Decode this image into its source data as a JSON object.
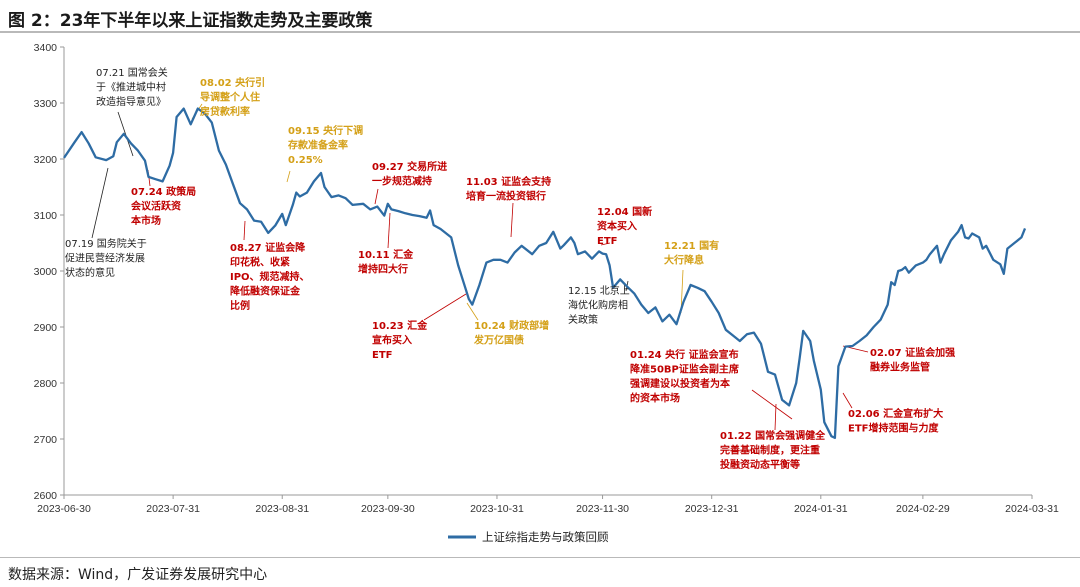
{
  "title": "图 2：23年下半年以来上证指数走势及主要政策",
  "source": "数据来源：Wind，广发证券发展研究中心",
  "colors": {
    "line": "#2e6ca4",
    "red": "#c00000",
    "gold": "#d4a017",
    "black": "#222222",
    "axis": "#999999"
  },
  "chart_data": {
    "type": "line",
    "title": "23年下半年以来上证指数走势及主要政策",
    "xlabel": "",
    "ylabel": "",
    "ylim": [
      2600,
      3400
    ],
    "yticks": [
      2600,
      2700,
      2800,
      2900,
      3000,
      3100,
      3200,
      3300,
      3400
    ],
    "xlim": [
      0,
      275
    ],
    "xticks": [
      {
        "label": "2023-06-30",
        "x": 0
      },
      {
        "label": "2023-07-31",
        "x": 31
      },
      {
        "label": "2023-08-31",
        "x": 62
      },
      {
        "label": "2023-09-30",
        "x": 92
      },
      {
        "label": "2023-10-31",
        "x": 123
      },
      {
        "label": "2023-11-30",
        "x": 153
      },
      {
        "label": "2023-12-31",
        "x": 184
      },
      {
        "label": "2024-01-31",
        "x": 215
      },
      {
        "label": "2024-02-29",
        "x": 244
      },
      {
        "label": "2024-03-31",
        "x": 275
      }
    ],
    "grid": false,
    "legend_position": "bottom",
    "series": [
      {
        "name": "上证综指走势与政策回顾",
        "points": [
          [
            0,
            3202
          ],
          [
            3,
            3230
          ],
          [
            5,
            3248
          ],
          [
            7,
            3228
          ],
          [
            9,
            3203
          ],
          [
            12,
            3198
          ],
          [
            14,
            3205
          ],
          [
            15,
            3230
          ],
          [
            17,
            3245
          ],
          [
            19,
            3228
          ],
          [
            21,
            3215
          ],
          [
            23,
            3197
          ],
          [
            24,
            3168
          ],
          [
            26,
            3164
          ],
          [
            28,
            3160
          ],
          [
            30,
            3188
          ],
          [
            31,
            3211
          ],
          [
            32,
            3275
          ],
          [
            34,
            3290
          ],
          [
            36,
            3262
          ],
          [
            38,
            3290
          ],
          [
            40,
            3281
          ],
          [
            42,
            3265
          ],
          [
            44,
            3215
          ],
          [
            46,
            3190
          ],
          [
            48,
            3155
          ],
          [
            50,
            3121
          ],
          [
            52,
            3110
          ],
          [
            54,
            3090
          ],
          [
            56,
            3088
          ],
          [
            58,
            3068
          ],
          [
            60,
            3081
          ],
          [
            62,
            3102
          ],
          [
            63,
            3082
          ],
          [
            64,
            3100
          ],
          [
            65,
            3118
          ],
          [
            66,
            3140
          ],
          [
            67,
            3133
          ],
          [
            69,
            3140
          ],
          [
            71,
            3160
          ],
          [
            73,
            3175
          ],
          [
            74,
            3150
          ],
          [
            76,
            3132
          ],
          [
            78,
            3135
          ],
          [
            80,
            3130
          ],
          [
            82,
            3118
          ],
          [
            85,
            3120
          ],
          [
            87,
            3110
          ],
          [
            89,
            3115
          ],
          [
            91,
            3099
          ],
          [
            92,
            3120
          ],
          [
            93,
            3110
          ],
          [
            95,
            3107
          ],
          [
            97,
            3103
          ],
          [
            99,
            3100
          ],
          [
            101,
            3098
          ],
          [
            103,
            3095
          ],
          [
            104,
            3108
          ],
          [
            105,
            3082
          ],
          [
            107,
            3075
          ],
          [
            110,
            3060
          ],
          [
            112,
            3010
          ],
          [
            114,
            2970
          ],
          [
            115,
            2950
          ],
          [
            116,
            2940
          ],
          [
            118,
            2975
          ],
          [
            120,
            3015
          ],
          [
            122,
            3020
          ],
          [
            124,
            3020
          ],
          [
            126,
            3015
          ],
          [
            128,
            3033
          ],
          [
            130,
            3045
          ],
          [
            133,
            3030
          ],
          [
            135,
            3045
          ],
          [
            137,
            3050
          ],
          [
            139,
            3070
          ],
          [
            141,
            3040
          ],
          [
            142,
            3046
          ],
          [
            144,
            3060
          ],
          [
            145,
            3050
          ],
          [
            146,
            3030
          ],
          [
            148,
            3035
          ],
          [
            150,
            3022
          ],
          [
            152,
            3035
          ],
          [
            153,
            3031
          ],
          [
            154,
            3030
          ],
          [
            155,
            3010
          ],
          [
            156,
            2970
          ],
          [
            158,
            2985
          ],
          [
            160,
            2972
          ],
          [
            162,
            2960
          ],
          [
            164,
            2940
          ],
          [
            166,
            2925
          ],
          [
            168,
            2935
          ],
          [
            170,
            2910
          ],
          [
            172,
            2922
          ],
          [
            174,
            2905
          ],
          [
            176,
            2945
          ],
          [
            178,
            2975
          ],
          [
            180,
            2970
          ],
          [
            182,
            2964
          ],
          [
            184,
            2945
          ],
          [
            186,
            2925
          ],
          [
            188,
            2895
          ],
          [
            190,
            2885
          ],
          [
            192,
            2875
          ],
          [
            194,
            2887
          ],
          [
            196,
            2890
          ],
          [
            198,
            2870
          ],
          [
            200,
            2820
          ],
          [
            202,
            2815
          ],
          [
            204,
            2770
          ],
          [
            206,
            2760
          ],
          [
            208,
            2800
          ],
          [
            209,
            2845
          ],
          [
            210,
            2893
          ],
          [
            212,
            2875
          ],
          [
            213,
            2840
          ],
          [
            215,
            2788
          ],
          [
            216,
            2730
          ],
          [
            218,
            2705
          ],
          [
            219,
            2702
          ],
          [
            220,
            2830
          ],
          [
            222,
            2865
          ],
          [
            224,
            2866
          ],
          [
            226,
            2875
          ],
          [
            228,
            2885
          ],
          [
            230,
            2900
          ],
          [
            232,
            2913
          ],
          [
            234,
            2940
          ],
          [
            235,
            2980
          ],
          [
            236,
            2975
          ],
          [
            237,
            3000
          ],
          [
            238,
            3002
          ],
          [
            239,
            3007
          ],
          [
            240,
            2997
          ],
          [
            242,
            3010
          ],
          [
            244,
            3015
          ],
          [
            245,
            3020
          ],
          [
            246,
            3030
          ],
          [
            248,
            3045
          ],
          [
            249,
            3015
          ],
          [
            250,
            3030
          ],
          [
            252,
            3055
          ],
          [
            254,
            3070
          ],
          [
            255,
            3082
          ],
          [
            256,
            3060
          ],
          [
            257,
            3058
          ],
          [
            258,
            3067
          ],
          [
            260,
            3060
          ],
          [
            261,
            3040
          ],
          [
            262,
            3045
          ],
          [
            264,
            3020
          ],
          [
            266,
            3012
          ],
          [
            267,
            2995
          ],
          [
            268,
            3040
          ],
          [
            270,
            3050
          ],
          [
            272,
            3060
          ],
          [
            273,
            3076
          ]
        ]
      }
    ],
    "annotations": [
      {
        "id": "a0719",
        "color": "black",
        "lines": [
          "07.19 国务院关于",
          "促进民营经济发展",
          "状态的意见"
        ]
      },
      {
        "id": "a0721",
        "color": "black",
        "lines": [
          "07.21 国常会关",
          "于《推进城中村",
          "改造指导意见》"
        ]
      },
      {
        "id": "a0724",
        "color": "red",
        "lines": [
          "07.24 政策局",
          "会议活跃资",
          "本市场"
        ]
      },
      {
        "id": "a0802",
        "color": "gold",
        "lines": [
          "08.02 央行引",
          "导调整个人住",
          "房贷款利率"
        ]
      },
      {
        "id": "a0827",
        "color": "red",
        "lines": [
          "08.27 证监会降",
          "印花税、收紧",
          "IPO、规范减持、",
          "降低融资保证金",
          "比例"
        ]
      },
      {
        "id": "a0915",
        "color": "gold",
        "lines": [
          "09.15 央行下调",
          "存款准备金率",
          "0.25%"
        ]
      },
      {
        "id": "a0927",
        "color": "red",
        "lines": [
          "09.27 交易所进",
          "一步规范减持"
        ]
      },
      {
        "id": "a1011",
        "color": "red",
        "lines": [
          "10.11 汇金",
          "增持四大行"
        ]
      },
      {
        "id": "a1023",
        "color": "red",
        "lines": [
          "10.23 汇金",
          "宣布买入",
          "ETF"
        ]
      },
      {
        "id": "a1024",
        "color": "gold",
        "lines": [
          "10.24 财政部增",
          "发万亿国债"
        ]
      },
      {
        "id": "a1103",
        "color": "red",
        "lines": [
          "11.03 证监会支持",
          "培育一流投资银行"
        ]
      },
      {
        "id": "a1204",
        "color": "red",
        "lines": [
          "12.04 国新",
          "资本买入",
          "ETF"
        ]
      },
      {
        "id": "a1215",
        "color": "black",
        "lines": [
          "12.15 北京上",
          "海优化购房相",
          "关政策"
        ]
      },
      {
        "id": "a1221",
        "color": "gold",
        "lines": [
          "12.21 国有",
          "大行降息"
        ]
      },
      {
        "id": "a0124",
        "color": "red",
        "lines": [
          "01.24 央行 证监会宣布",
          "降准50BP证监会副主席",
          "强调建设以投资者为本",
          "的资本市场"
        ]
      },
      {
        "id": "a0122",
        "color": "red",
        "lines": [
          "01.22 国常会强调健全",
          "完善基础制度，更注重",
          "投融资动态平衡等"
        ]
      },
      {
        "id": "a0207",
        "color": "red",
        "lines": [
          "02.07 证监会加强",
          "融券业务监管"
        ]
      },
      {
        "id": "a0206",
        "color": "red",
        "lines": [
          "02.06 汇金宣布扩大",
          "ETF增持范围与力度"
        ]
      }
    ]
  }
}
